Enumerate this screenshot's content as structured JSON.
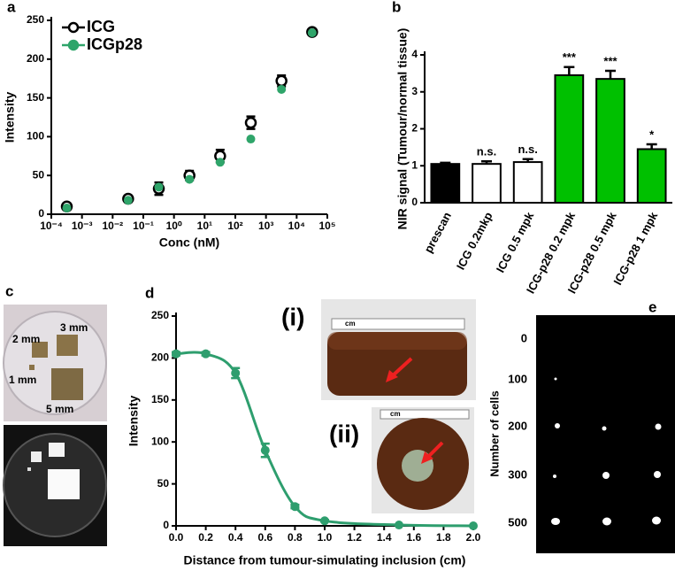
{
  "panel_labels": [
    "a",
    "b",
    "c",
    "d",
    "e"
  ],
  "chart_data": [
    {
      "type": "scatter",
      "xlabel": "Conc (nM)",
      "ylabel": "Intensity",
      "xscale": "log",
      "x": [
        0.00032,
        0.032,
        0.32,
        3.2,
        32,
        320,
        3200,
        32000
      ],
      "series": [
        {
          "name": "ICG",
          "color": "#000000",
          "marker": "open",
          "values": [
            10,
            20,
            33,
            50,
            75,
            118,
            172,
            235
          ],
          "errors": [
            4,
            4,
            8,
            6,
            8,
            8,
            7,
            2
          ]
        },
        {
          "name": "ICGp28",
          "color": "#2fa56a",
          "marker": "filled",
          "values": [
            8,
            18,
            35,
            45,
            67,
            97,
            161,
            234
          ]
        }
      ],
      "xlim": [
        0.0001,
        100000
      ],
      "xticks": [
        {
          "value": 0.0001,
          "label": "10⁻⁴"
        },
        {
          "value": 0.001,
          "label": "10⁻³"
        },
        {
          "value": 0.01,
          "label": "10⁻²"
        },
        {
          "value": 0.1,
          "label": "10⁻¹"
        },
        {
          "value": 1,
          "label": "10⁰"
        },
        {
          "value": 10,
          "label": "10¹"
        },
        {
          "value": 100,
          "label": "10²"
        },
        {
          "value": 1000,
          "label": "10³"
        },
        {
          "value": 10000,
          "label": "10⁴"
        },
        {
          "value": 100000,
          "label": "10⁵"
        }
      ],
      "ylim": [
        0,
        250
      ],
      "yticks": [
        0,
        50,
        100,
        150,
        200,
        250
      ]
    },
    {
      "type": "bar",
      "ylabel": "NIR signal (Tumour/normal tissue)",
      "categories": [
        "prescan",
        "ICG 0.2mkp",
        "ICG 0.5 mpk",
        "ICG-p28 0.2 mpk",
        "ICG-p28 0.5 mpk",
        "ICG-p28 1 mpk"
      ],
      "category_colors": [
        "#000000",
        "#000000",
        "#000000",
        "#00b400",
        "#00b400",
        "#00b400"
      ],
      "values": [
        1.05,
        1.05,
        1.1,
        3.45,
        3.35,
        1.45
      ],
      "errors": [
        0.03,
        0.07,
        0.08,
        0.22,
        0.22,
        0.13
      ],
      "bar_colors": [
        "#000000",
        "#ffffff",
        "#ffffff",
        "#00c000",
        "#00c000",
        "#00c000"
      ],
      "annotations": [
        null,
        "n.s.",
        "n.s.",
        "***",
        "***",
        "*"
      ],
      "ylim": [
        0,
        4
      ],
      "yticks": [
        0,
        1,
        2,
        3,
        4
      ]
    },
    {
      "type": "line",
      "xlabel": "Distance from tumour-simulating inclusion (cm)",
      "ylabel": "Intensity",
      "color": "#2e9e6e",
      "x": [
        0,
        0.2,
        0.4,
        0.6,
        0.8,
        1.0,
        1.5,
        2.0
      ],
      "values": [
        205,
        205,
        182,
        90,
        23,
        6,
        1,
        0
      ],
      "errors": [
        2,
        2,
        6,
        8,
        2,
        1,
        0,
        0
      ],
      "xlim": [
        0,
        2
      ],
      "xticks": [
        {
          "value": 0,
          "label": "0.0"
        },
        0.2,
        0.4,
        0.6,
        0.8,
        {
          "value": 1,
          "label": "1.0"
        },
        1.2,
        1.4,
        1.6,
        1.8,
        {
          "value": 2,
          "label": "2.0"
        }
      ],
      "ylim": [
        0,
        250
      ],
      "yticks": [
        0,
        50,
        100,
        150,
        200,
        250
      ],
      "insets": [
        {
          "label": "(i)",
          "ruler": "cm"
        },
        {
          "label": "(ii)",
          "ruler": "cm"
        }
      ]
    }
  ],
  "panel_c": {
    "labels": [
      "2 mm",
      "3 mm",
      "1 mm",
      "5 mm"
    ]
  },
  "panel_e": {
    "ylabel": "Number of cells",
    "row_labels": [
      "0",
      "100",
      "200",
      "300",
      "500"
    ]
  }
}
